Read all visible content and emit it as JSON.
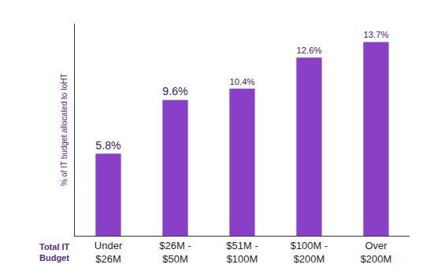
{
  "chart_data": {
    "type": "bar",
    "categories": [
      "Under\n$26M",
      "$26M -\n$50M",
      "$51M -\n$100M",
      "$100M -\n$200M",
      "Over\n$200M"
    ],
    "values": [
      5.8,
      9.6,
      10.4,
      12.6,
      13.7
    ],
    "value_labels": [
      "5.8%",
      "9.6%",
      "10.4%",
      "12.6%",
      "13.7%"
    ],
    "ylabel": "% of IT budget allocated to IoHT",
    "xlabel": "Total IT\nBudget",
    "color": "#8a3fc7",
    "ylim": [
      0,
      15
    ],
    "data_labels": true,
    "tick_labels": "x",
    "grid": false
  }
}
